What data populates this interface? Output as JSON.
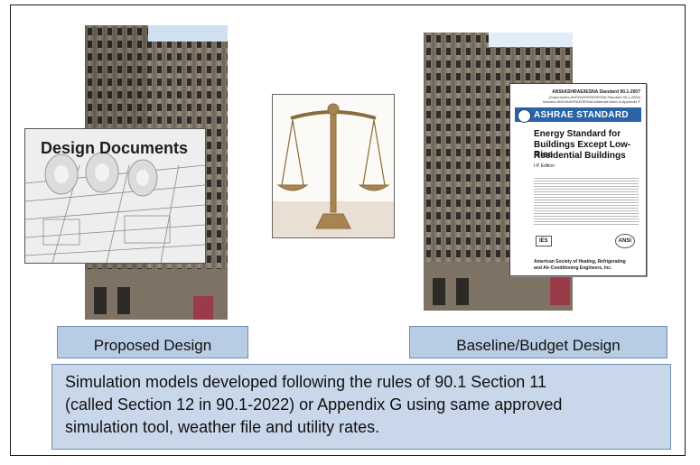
{
  "proposed": {
    "label": "Proposed Design",
    "documents_title": "Design Documents"
  },
  "baseline": {
    "label": "Baseline/Budget Design",
    "standard": {
      "header_line1": "ANSI/ASHRAE/IESNA Standard 90.1-2007",
      "header_line2": "(Supersedes ANSI/ASHRAE/IESNA Standard 90.1-2004)",
      "header_line3": "Includes ANSI/ASHRAE/IESNA Addenda listed in Appendix F",
      "brand": "ASHRAE STANDARD",
      "title_line1": "Energy Standard for",
      "title_line2": "Buildings Except Low-Rise",
      "title_line3": "Residential Buildings",
      "edition": "I-P Edition",
      "logo_left": "IES",
      "logo_right": "ANSI",
      "society_line1": "American Society of Heating, Refrigerating",
      "society_line2": "and Air-Conditioning Engineers, Inc."
    }
  },
  "caption": {
    "line1": "Simulation models developed following the rules of 90.1 Section 11",
    "line2": "(called Section 12 in 90.1-2022) or Appendix G using same approved",
    "line3": "simulation tool, weather file and utility rates."
  }
}
